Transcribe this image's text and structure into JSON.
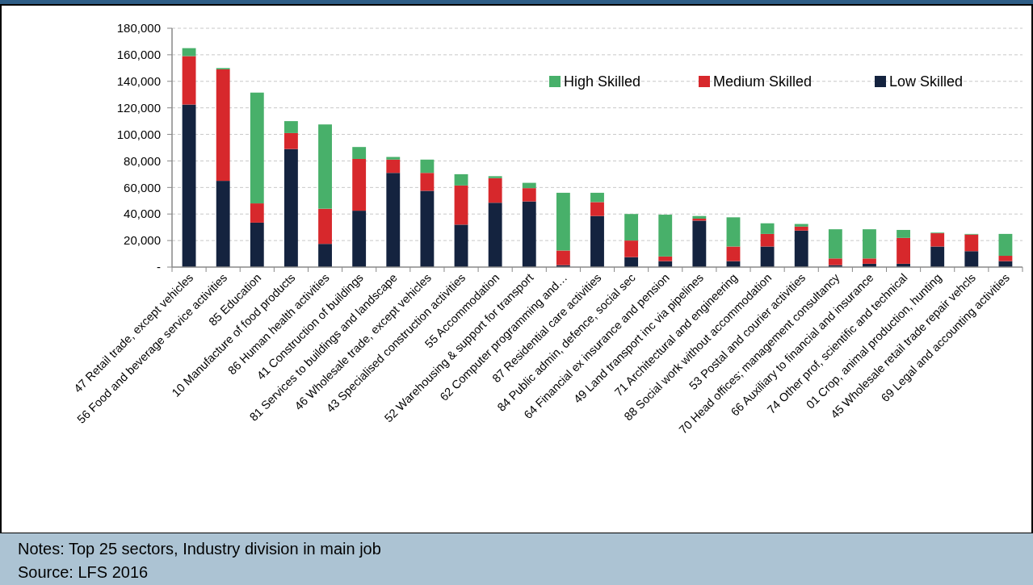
{
  "chart_data": {
    "type": "bar",
    "stacked": true,
    "categories": [
      "47 Retail trade, except vehicles",
      "56 Food and beverage service activities",
      "85  Education",
      "10 Manufacture of food products",
      "86 Human health activities",
      "41 Construction of buildings",
      "81 Services to buildings and landscape",
      "46 Wholesale trade, except vehicles",
      "43 Specialised construction activities",
      "55  Accommodation",
      "52 Warehousing & support for transport",
      "62 Computer programming and…",
      "87 Residential care activities",
      "84 Public admin, defence, social sec",
      "64 Financial ex insurance and pension",
      "49 Land transport inc via pipelines",
      "71 Architectural and engineering",
      "88 Social work without accommodation",
      "53  Postal and courier activities",
      "70 Head offices; management consultancy",
      "66 Auxiliary to financial and insurance",
      "74 Other prof, scientific and technical",
      "01 Crop, animal production, hunting",
      "45 Wholesale retail trade repair vehcls",
      "69 Legal and accounting activities"
    ],
    "series": [
      {
        "name": "Low Skilled",
        "color": "#14233f",
        "values": [
          122500,
          65000,
          33500,
          89000,
          17500,
          42500,
          71000,
          57500,
          32000,
          48500,
          49500,
          1500,
          38500,
          7500,
          4500,
          35000,
          4500,
          15500,
          27500,
          1500,
          2500,
          2500,
          15500,
          12000,
          4500
        ]
      },
      {
        "name": "Medium Skilled",
        "color": "#d7282c",
        "values": [
          36500,
          84000,
          14500,
          12000,
          26500,
          39000,
          10000,
          13500,
          29500,
          18500,
          10000,
          11000,
          10500,
          12500,
          3500,
          1500,
          11000,
          9500,
          3000,
          5000,
          4000,
          19500,
          10000,
          12500,
          4000
        ]
      },
      {
        "name": "High Skilled",
        "color": "#48b06a",
        "values": [
          6000,
          1000,
          83500,
          9000,
          63500,
          9000,
          2000,
          10000,
          8500,
          1500,
          4000,
          43500,
          7000,
          20000,
          31500,
          2000,
          22000,
          8000,
          2000,
          22000,
          22000,
          6000,
          500,
          500,
          16500
        ]
      }
    ],
    "ylim": [
      0,
      180000
    ],
    "yticks": [
      {
        "value": 0,
        "label": "-"
      },
      {
        "value": 20000,
        "label": "20,000"
      },
      {
        "value": 40000,
        "label": "40,000"
      },
      {
        "value": 60000,
        "label": "60,000"
      },
      {
        "value": 80000,
        "label": "80,000"
      },
      {
        "value": 100000,
        "label": "100,000"
      },
      {
        "value": 120000,
        "label": "120,000"
      },
      {
        "value": 140000,
        "label": "140,000"
      },
      {
        "value": 160000,
        "label": "160,000"
      },
      {
        "value": 180000,
        "label": "180,000"
      }
    ],
    "grid": "y",
    "legend": "top right",
    "annotations": [
      "Notes: Top 25 sectors, Industry division in main job",
      "Source:  LFS 2016"
    ]
  }
}
